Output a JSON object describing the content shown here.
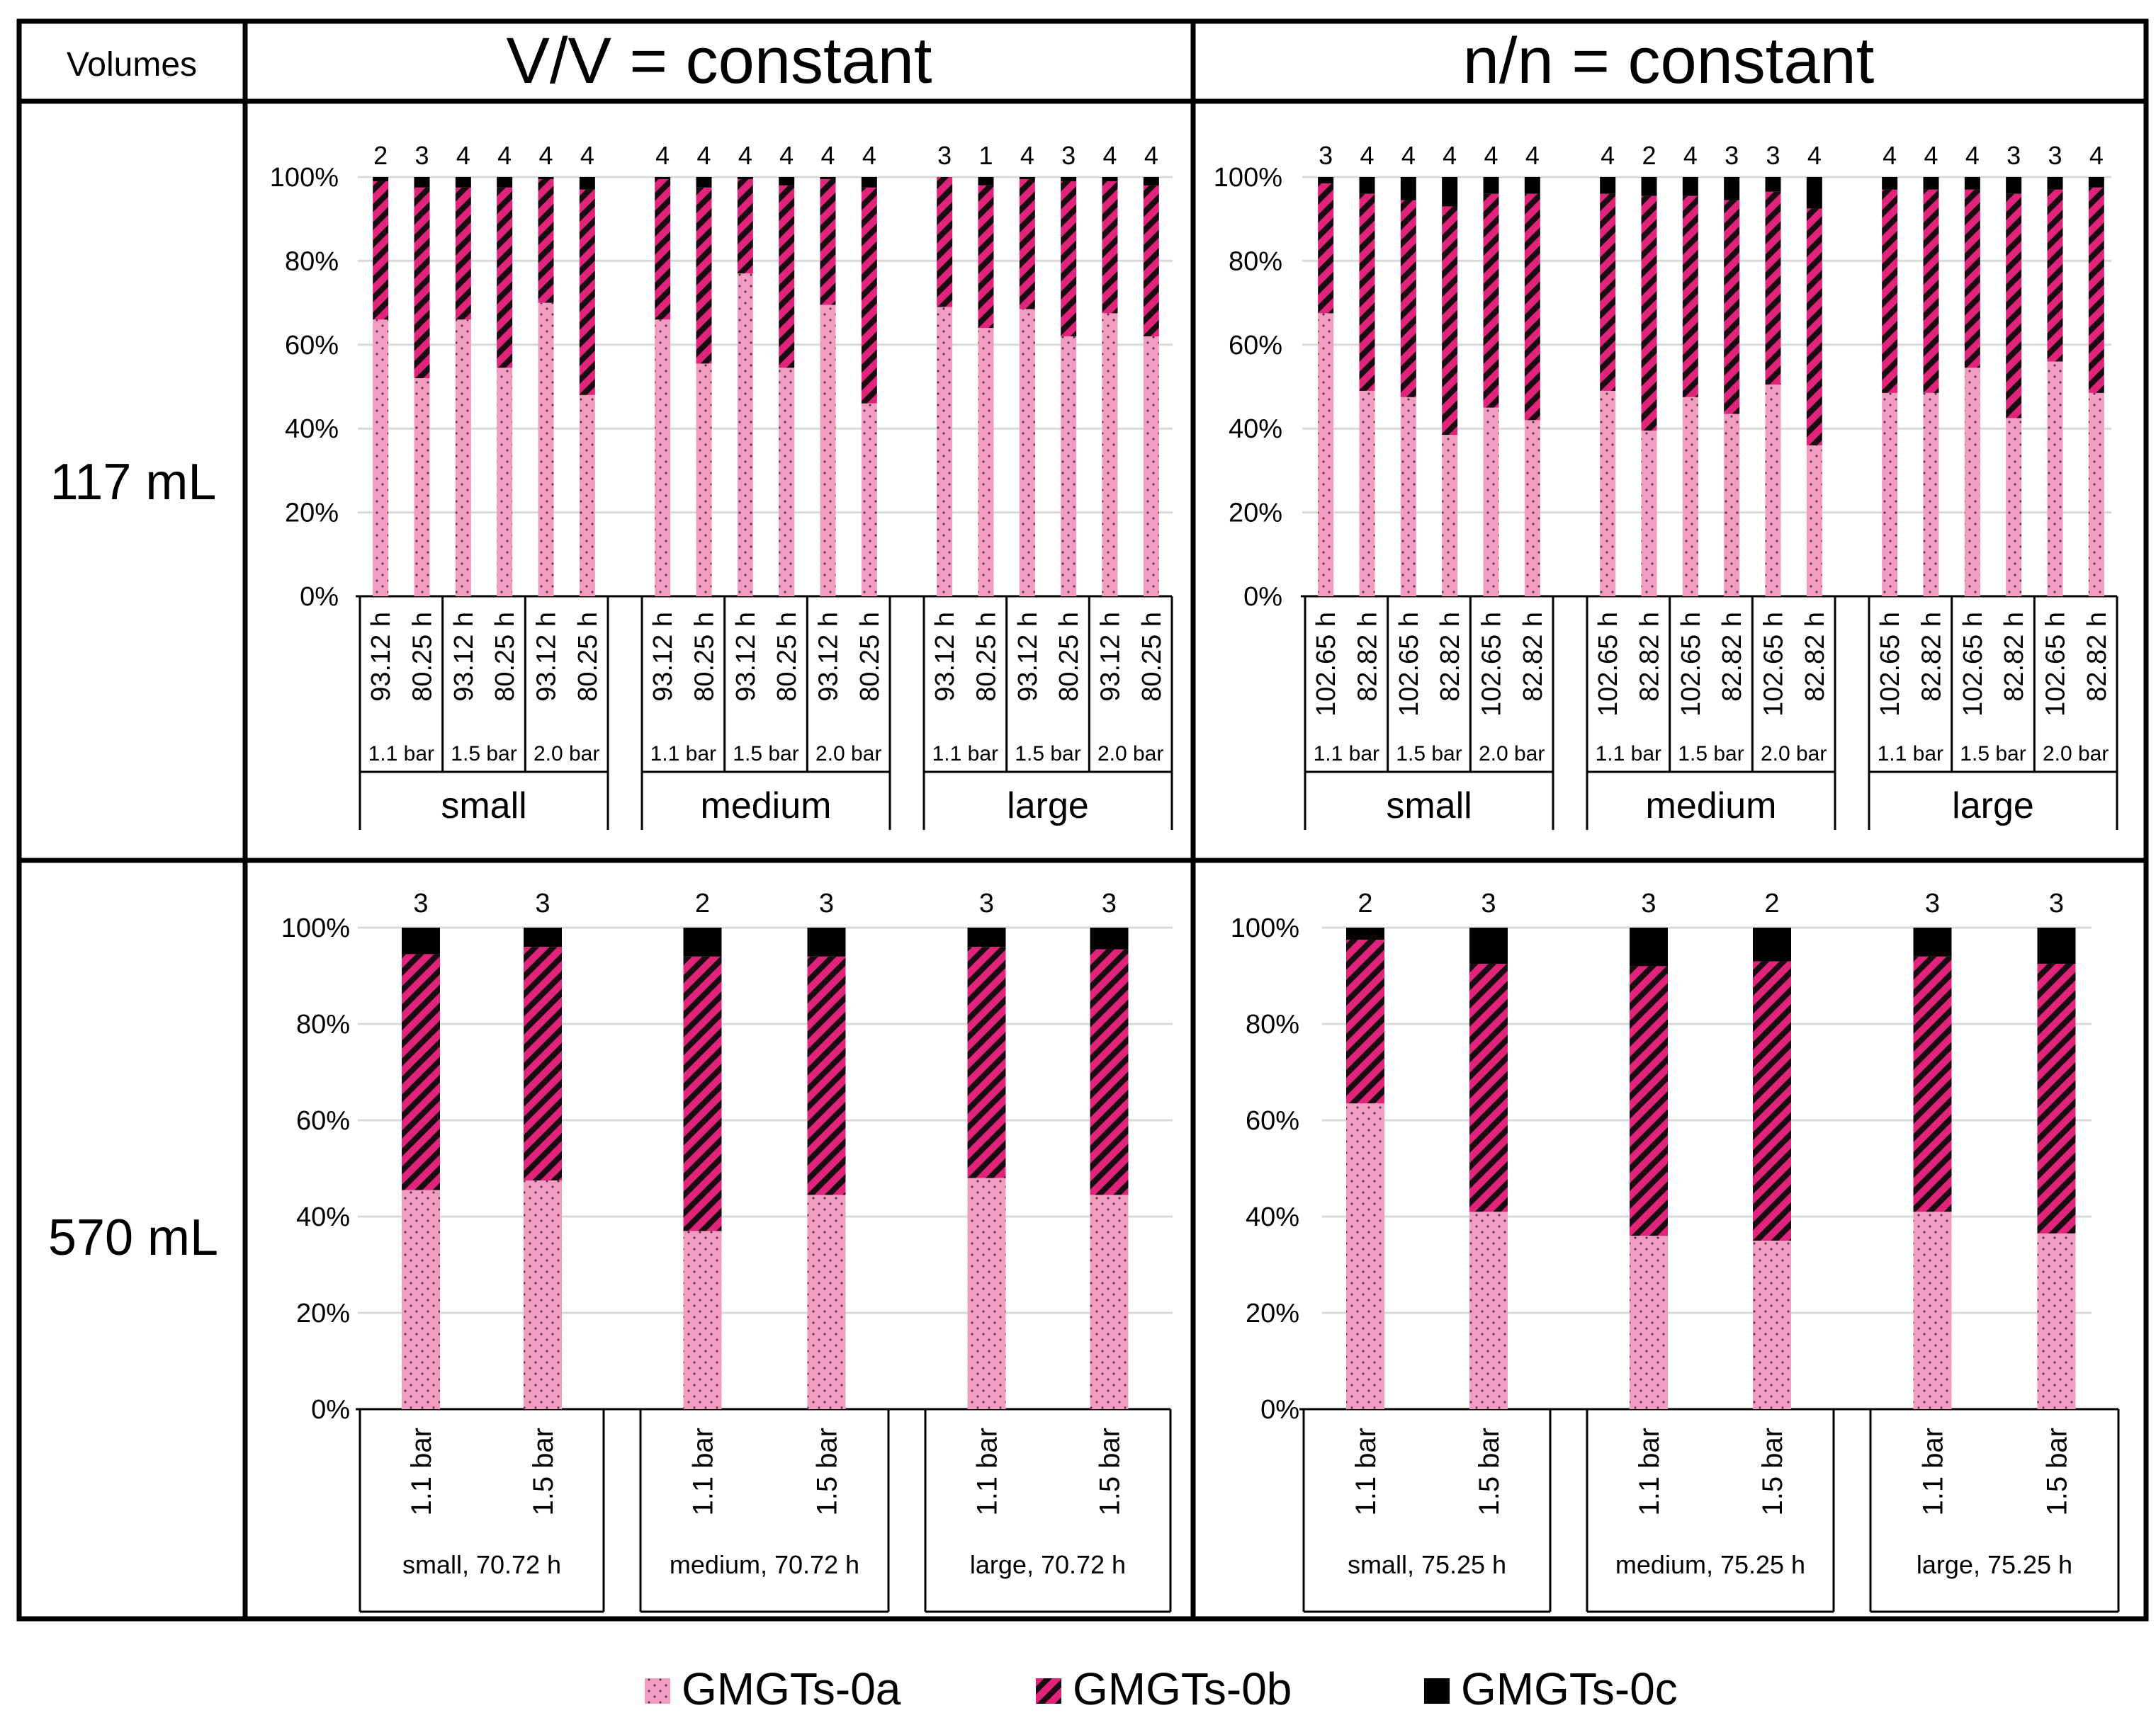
{
  "header": {
    "volumes_label": "Volumes",
    "col1_title": "V/V = constant",
    "col2_title": "n/n = constant"
  },
  "rows": {
    "row1_label": "117 mL",
    "row2_label": "570 mL"
  },
  "legend": {
    "items": [
      {
        "label": "GMGTs-0a",
        "color": "#f19cc0",
        "pattern": "dots"
      },
      {
        "label": "GMGTs-0b",
        "color": "#e0247a",
        "pattern": "stripes"
      },
      {
        "label": "GMGTs-0c",
        "color": "#000000",
        "pattern": "solid"
      }
    ]
  },
  "colors": {
    "a": "#f19cc0",
    "b": "#e0247a",
    "c": "#000000",
    "border": "#000000",
    "grid": "#d9d9d9"
  },
  "chart_data": [
    {
      "id": "vv117",
      "type": "bar",
      "stacked": true,
      "title": "117 mL, V/V = constant",
      "yticks": [
        "0%",
        "20%",
        "40%",
        "60%",
        "80%",
        "100%"
      ],
      "ylim": [
        0,
        100
      ],
      "series_names": [
        "GMGTs-0a",
        "GMGTs-0b",
        "GMGTs-0c"
      ],
      "groups": [
        {
          "label": "small",
          "pressures": [
            "1.1 bar",
            "1.5 bar",
            "2.0 bar"
          ],
          "times": [
            "93.12 h",
            "80.25 h"
          ],
          "bars": [
            [
              66,
              33,
              1
            ],
            [
              52,
              45.5,
              2.5
            ],
            [
              66,
              31.5,
              2.5
            ],
            [
              54.5,
              43,
              2.5
            ],
            [
              70,
              29.5,
              0.5
            ],
            [
              48,
              49,
              3
            ]
          ],
          "n": [
            "2",
            "3",
            "4",
            "4",
            "4",
            "4"
          ]
        },
        {
          "label": "medium",
          "pressures": [
            "1.1 bar",
            "1.5 bar",
            "2.0 bar"
          ],
          "times": [
            "93.12 h",
            "80.25 h"
          ],
          "bars": [
            [
              66,
              33.5,
              0.5
            ],
            [
              55.5,
              42,
              2.5
            ],
            [
              77,
              22.5,
              0.5
            ],
            [
              54.5,
              43.5,
              2
            ],
            [
              69.5,
              30,
              0.5
            ],
            [
              46,
              51.5,
              2.5
            ]
          ],
          "n": [
            "4",
            "4",
            "4",
            "4",
            "4",
            "4"
          ]
        },
        {
          "label": "large",
          "pressures": [
            "1.1 bar",
            "1.5 bar",
            "2.0 bar"
          ],
          "times": [
            "93.12 h",
            "80.25 h"
          ],
          "bars": [
            [
              69,
              31,
              0
            ],
            [
              64,
              34,
              2
            ],
            [
              68.5,
              31,
              0.5
            ],
            [
              62,
              37,
              1
            ],
            [
              67.5,
              31.5,
              1
            ],
            [
              62,
              36,
              2
            ]
          ],
          "n": [
            "3",
            "1",
            "4",
            "3",
            "4",
            "4"
          ]
        }
      ]
    },
    {
      "id": "nn117",
      "type": "bar",
      "stacked": true,
      "title": "117 mL, n/n = constant",
      "yticks": [
        "0%",
        "20%",
        "40%",
        "60%",
        "80%",
        "100%"
      ],
      "ylim": [
        0,
        100
      ],
      "series_names": [
        "GMGTs-0a",
        "GMGTs-0b",
        "GMGTs-0c"
      ],
      "groups": [
        {
          "label": "small",
          "pressures": [
            "1.1 bar",
            "1.5 bar",
            "2.0 bar"
          ],
          "times": [
            "102.65 h",
            "82.82 h"
          ],
          "bars": [
            [
              67.5,
              31,
              1.5
            ],
            [
              49,
              47,
              4
            ],
            [
              47.5,
              47,
              5.5
            ],
            [
              38.5,
              54.5,
              7
            ],
            [
              45,
              51,
              4
            ],
            [
              42,
              54,
              4
            ]
          ],
          "n": [
            "3",
            "4",
            "4",
            "4",
            "4",
            "4"
          ]
        },
        {
          "label": "medium",
          "pressures": [
            "1.1 bar",
            "1.5 bar",
            "2.0 bar"
          ],
          "times": [
            "102.65 h",
            "82.82 h"
          ],
          "bars": [
            [
              49,
              47,
              4
            ],
            [
              39.5,
              56,
              4.5
            ],
            [
              47.5,
              48,
              4.5
            ],
            [
              43.5,
              51,
              5.5
            ],
            [
              50.5,
              46,
              3.5
            ],
            [
              36,
              56.5,
              7.5
            ]
          ],
          "n": [
            "4",
            "2",
            "4",
            "3",
            "3",
            "4"
          ]
        },
        {
          "label": "large",
          "pressures": [
            "1.1 bar",
            "1.5 bar",
            "2.0 bar"
          ],
          "times": [
            "102.65 h",
            "82.82 h"
          ],
          "bars": [
            [
              48.5,
              48.5,
              3
            ],
            [
              48.5,
              48.5,
              3
            ],
            [
              54.5,
              42.5,
              3
            ],
            [
              42.5,
              53.5,
              4
            ],
            [
              56,
              41,
              3
            ],
            [
              48.5,
              49,
              2.5
            ]
          ],
          "n": [
            "4",
            "4",
            "4",
            "3",
            "3",
            "4"
          ]
        }
      ]
    },
    {
      "id": "vv570",
      "type": "bar",
      "stacked": true,
      "title": "570 mL, V/V = constant",
      "yticks": [
        "0%",
        "20%",
        "40%",
        "60%",
        "80%",
        "100%"
      ],
      "ylim": [
        0,
        100
      ],
      "series_names": [
        "GMGTs-0a",
        "GMGTs-0b",
        "GMGTs-0c"
      ],
      "groups": [
        {
          "label": "small, 70.72 h",
          "pressures": [
            "1.1 bar",
            "1.5 bar"
          ],
          "bars": [
            [
              45.5,
              49,
              5.5
            ],
            [
              47.5,
              48.5,
              4
            ]
          ],
          "n": [
            "3",
            "3"
          ]
        },
        {
          "label": "medium, 70.72 h",
          "pressures": [
            "1.1 bar",
            "1.5 bar"
          ],
          "bars": [
            [
              37,
              57,
              6
            ],
            [
              44.5,
              49.5,
              6
            ]
          ],
          "n": [
            "2",
            "3"
          ]
        },
        {
          "label": "large, 70.72 h",
          "pressures": [
            "1.1 bar",
            "1.5 bar"
          ],
          "bars": [
            [
              48,
              48,
              4
            ],
            [
              44.5,
              51,
              4.5
            ]
          ],
          "n": [
            "3",
            "3"
          ]
        }
      ]
    },
    {
      "id": "nn570",
      "type": "bar",
      "stacked": true,
      "title": "570 mL, n/n = constant",
      "yticks": [
        "0%",
        "20%",
        "40%",
        "60%",
        "80%",
        "100%"
      ],
      "ylim": [
        0,
        100
      ],
      "series_names": [
        "GMGTs-0a",
        "GMGTs-0b",
        "GMGTs-0c"
      ],
      "groups": [
        {
          "label": "small, 75.25 h",
          "pressures": [
            "1.1 bar",
            "1.5 bar"
          ],
          "bars": [
            [
              63.5,
              34,
              2.5
            ],
            [
              41,
              51.5,
              7.5
            ]
          ],
          "n": [
            "2",
            "3"
          ]
        },
        {
          "label": "medium, 75.25 h",
          "pressures": [
            "1.1 bar",
            "1.5 bar"
          ],
          "bars": [
            [
              36,
              56,
              8
            ],
            [
              35,
              58,
              7
            ]
          ],
          "n": [
            "3",
            "2"
          ]
        },
        {
          "label": "large, 75.25 h",
          "pressures": [
            "1.1 bar",
            "1.5 bar"
          ],
          "bars": [
            [
              41,
              53,
              6
            ],
            [
              36.5,
              56,
              7.5
            ]
          ],
          "n": [
            "3",
            "3"
          ]
        }
      ]
    }
  ]
}
